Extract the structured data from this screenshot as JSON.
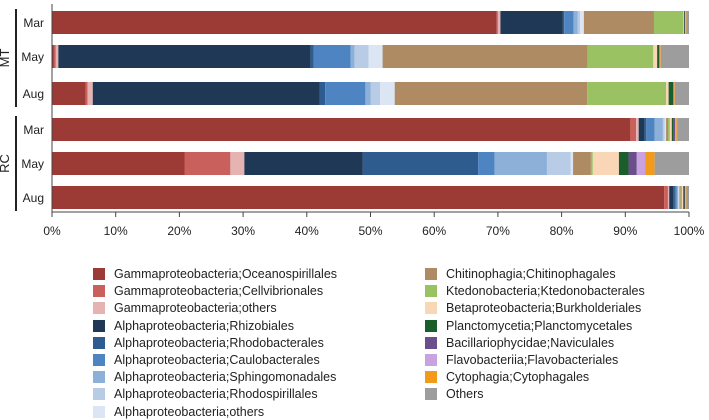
{
  "chart_data": {
    "type": "bar",
    "orientation": "horizontal",
    "stacked": true,
    "normalized_percent": true,
    "title": "",
    "xlabel": "",
    "ylabel": "",
    "xlim": [
      0,
      100
    ],
    "x_ticks": [
      "0%",
      "10%",
      "20%",
      "30%",
      "40%",
      "50%",
      "60%",
      "70%",
      "80%",
      "90%",
      "100%"
    ],
    "groups": [
      {
        "name": "MT",
        "categories": [
          "Mar",
          "May",
          "Aug"
        ]
      },
      {
        "name": "RC",
        "categories": [
          "Mar",
          "May",
          "Aug"
        ]
      }
    ],
    "categories": [
      "MT Mar",
      "MT May",
      "MT Aug",
      "RC Mar",
      "RC May",
      "RC Aug"
    ],
    "category_labels": [
      "Mar",
      "May",
      "Aug",
      "Mar",
      "May",
      "Aug"
    ],
    "legend_placement": "bottom",
    "series": [
      {
        "name": "Gammaproteobacteria;Oceanospirillales",
        "color": "#9c3a36",
        "values": [
          69.8,
          0.3,
          5.3,
          90.8,
          20.8,
          95.9
        ]
      },
      {
        "name": "Gammaproteobacteria;Cellvibrionales",
        "color": "#c9605c",
        "values": [
          0.2,
          0.3,
          0.3,
          0.9,
          7.2,
          0.6
        ]
      },
      {
        "name": "Gammaproteobacteria;others",
        "color": "#e5b3b1",
        "values": [
          0.4,
          0.4,
          0.8,
          0.4,
          2.2,
          0.2
        ]
      },
      {
        "name": "Alphaproteobacteria;Rhizobiales",
        "color": "#1f3856",
        "values": [
          9.8,
          39.6,
          35.6,
          0.9,
          18.6,
          0.6
        ]
      },
      {
        "name": "Alphaproteobacteria;Rhodobacterales",
        "color": "#2f5c8f",
        "values": [
          0.2,
          0.5,
          0.9,
          0.3,
          18.1,
          0.3
        ]
      },
      {
        "name": "Alphaproteobacteria;Caulobacterales",
        "color": "#4f84c2",
        "values": [
          1.5,
          5.8,
          6.3,
          1.3,
          2.6,
          0.3
        ]
      },
      {
        "name": "Alphaproteobacteria;Sphingomonadales",
        "color": "#8db0d9",
        "values": [
          0.6,
          0.6,
          0.8,
          1.3,
          8.2,
          0.2
        ]
      },
      {
        "name": "Alphaproteobacteria;Rhodospirillales",
        "color": "#b8cce6",
        "values": [
          0.4,
          2.2,
          1.5,
          0.3,
          3.7,
          0.1
        ]
      },
      {
        "name": "Alphaproteobacteria;others",
        "color": "#dbe5f3",
        "values": [
          0.6,
          2.2,
          2.3,
          0.2,
          0.4,
          0.1
        ]
      },
      {
        "name": "Chitinophagia;Chitinophagales",
        "color": "#ae8b63",
        "values": [
          11.0,
          32.2,
          30.2,
          0.3,
          2.8,
          0.2
        ]
      },
      {
        "name": "Ktedonobacteria;Ktedonobacterales",
        "color": "#9bc262",
        "values": [
          4.6,
          10.3,
          12.4,
          0.3,
          0.3,
          0.2
        ]
      },
      {
        "name": "Betaproteobacteria;Burkholderiales",
        "color": "#f9d7b6",
        "values": [
          0.1,
          0.6,
          0.4,
          0.3,
          4.1,
          0.2
        ]
      },
      {
        "name": "Planctomycetia;Planctomycetales",
        "color": "#1a5e2b",
        "values": [
          0.1,
          0.3,
          0.7,
          0.3,
          1.5,
          0.2
        ]
      },
      {
        "name": "Bacillariophycidae;Naviculales",
        "color": "#6b4e8c",
        "values": [
          0.1,
          0.1,
          0.1,
          0.2,
          1.3,
          0.1
        ]
      },
      {
        "name": "Flavobacteriia;Flavobacteriales",
        "color": "#c9a3e0",
        "values": [
          0.1,
          0.1,
          0.1,
          0.2,
          1.3,
          0.1
        ]
      },
      {
        "name": "Cytophagia;Cytophagales",
        "color": "#f29a1c",
        "values": [
          0.1,
          0.1,
          0.1,
          0.2,
          1.5,
          0.1
        ]
      },
      {
        "name": "Others",
        "color": "#9d9d9d",
        "values": [
          0.4,
          4.4,
          2.2,
          1.8,
          5.4,
          0.4
        ]
      }
    ]
  }
}
